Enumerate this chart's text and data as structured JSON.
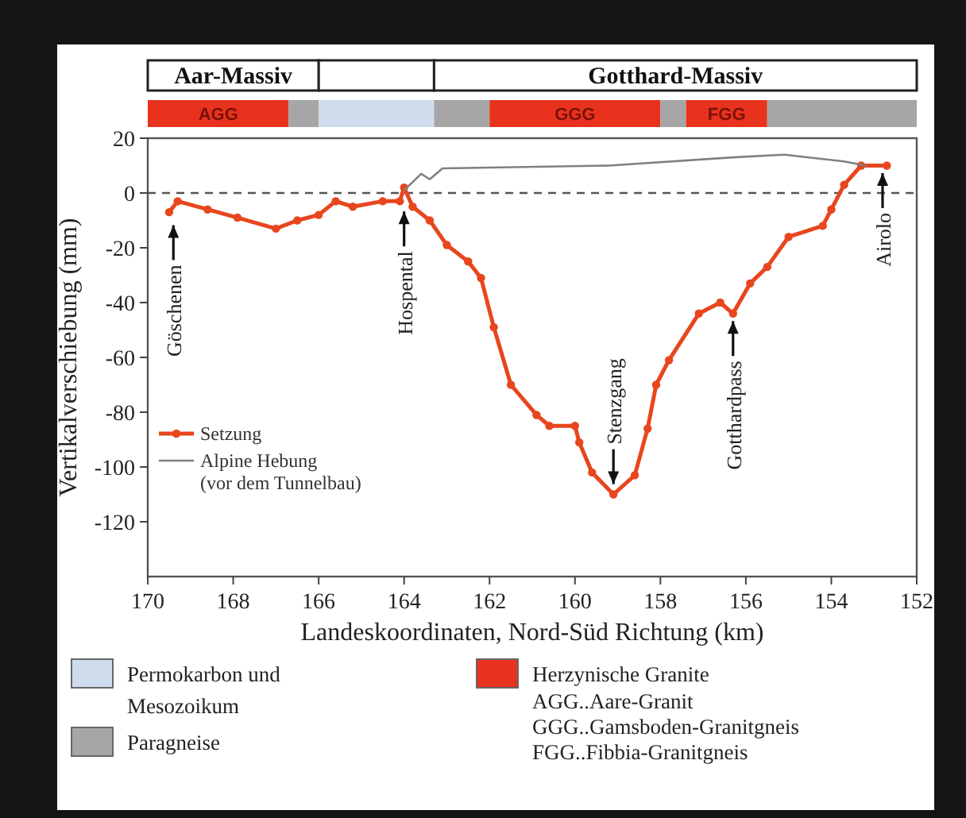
{
  "chart_data": [
    {
      "type": "other",
      "annotations": [
        "Aar-Massiv",
        "Gotthard-Massiv",
        "AGG",
        "GGG",
        "FGG",
        "Permokarbon und Mesozoikum",
        "Paragneise",
        "Herzynische Granite",
        "AGG..Aare-Granit",
        "GGG..Gamsboden-Granitgneis",
        "FGG..Fibbia-Granitgneis"
      ]
    },
    {
      "type": "line",
      "xlabel": "Landeskoordinaten, Nord-Süd Richtung (km)",
      "ylabel": "Vertikalverschiebung (mm)",
      "xlim": [
        170,
        152
      ],
      "xticks": [
        170,
        168,
        166,
        164,
        162,
        160,
        158,
        156,
        154,
        152
      ],
      "ylim": [
        -140,
        20
      ],
      "yticks": [
        20,
        0,
        -20,
        -40,
        -60,
        -80,
        -100,
        -120
      ],
      "legend": "left",
      "series": [
        {
          "name": "Setzung",
          "color": "#e8461e",
          "marker": "circle",
          "x": [
            169.5,
            169.3,
            168.6,
            167.9,
            167.0,
            166.5,
            166.0,
            165.6,
            165.2,
            164.5,
            164.1,
            164.0,
            163.8,
            163.4,
            163.0,
            162.5,
            162.2,
            161.9,
            161.5,
            160.9,
            160.6,
            160.0,
            159.9,
            159.6,
            159.1,
            158.6,
            158.3,
            158.1,
            157.8,
            157.1,
            156.6,
            156.3,
            155.9,
            155.5,
            155.0,
            154.2,
            154.0,
            153.7,
            153.3,
            152.7
          ],
          "values": [
            -7,
            -3,
            -6,
            -9,
            -13,
            -10,
            -8,
            -3,
            -5,
            -3,
            -3,
            2,
            -5,
            -10,
            -19,
            -25,
            -31,
            -49,
            -70,
            -81,
            -85,
            -85,
            -91,
            -102,
            -110,
            -103,
            -86,
            -70,
            -61,
            -44,
            -40,
            -44,
            -33,
            -27,
            -16,
            -12,
            -6,
            3,
            10,
            10
          ]
        },
        {
          "name": "Alpine Hebung (vor dem Tunnelbau)",
          "color": "#808080",
          "marker": "none",
          "x": [
            164.0,
            163.6,
            163.4,
            163.1,
            159.2,
            156.3,
            155.1,
            153.7,
            153.2
          ],
          "values": [
            1,
            7,
            5,
            9,
            10,
            13,
            14,
            11.5,
            10
          ]
        }
      ],
      "ref_lines": [
        {
          "axis": "y",
          "value": 0,
          "line_style": "dashed",
          "color": "#555555"
        }
      ],
      "annotations": [
        {
          "text": "Göschenen",
          "x": 169.4,
          "y": -10
        },
        {
          "text": "Hospental",
          "x": 164.0,
          "y": -5
        },
        {
          "text": "Stenzgang",
          "x": 159.1,
          "y": -108
        },
        {
          "text": "Gotthardpass",
          "x": 156.3,
          "y": -45
        },
        {
          "text": "Airolo",
          "x": 152.8,
          "y": 9
        }
      ]
    }
  ]
}
